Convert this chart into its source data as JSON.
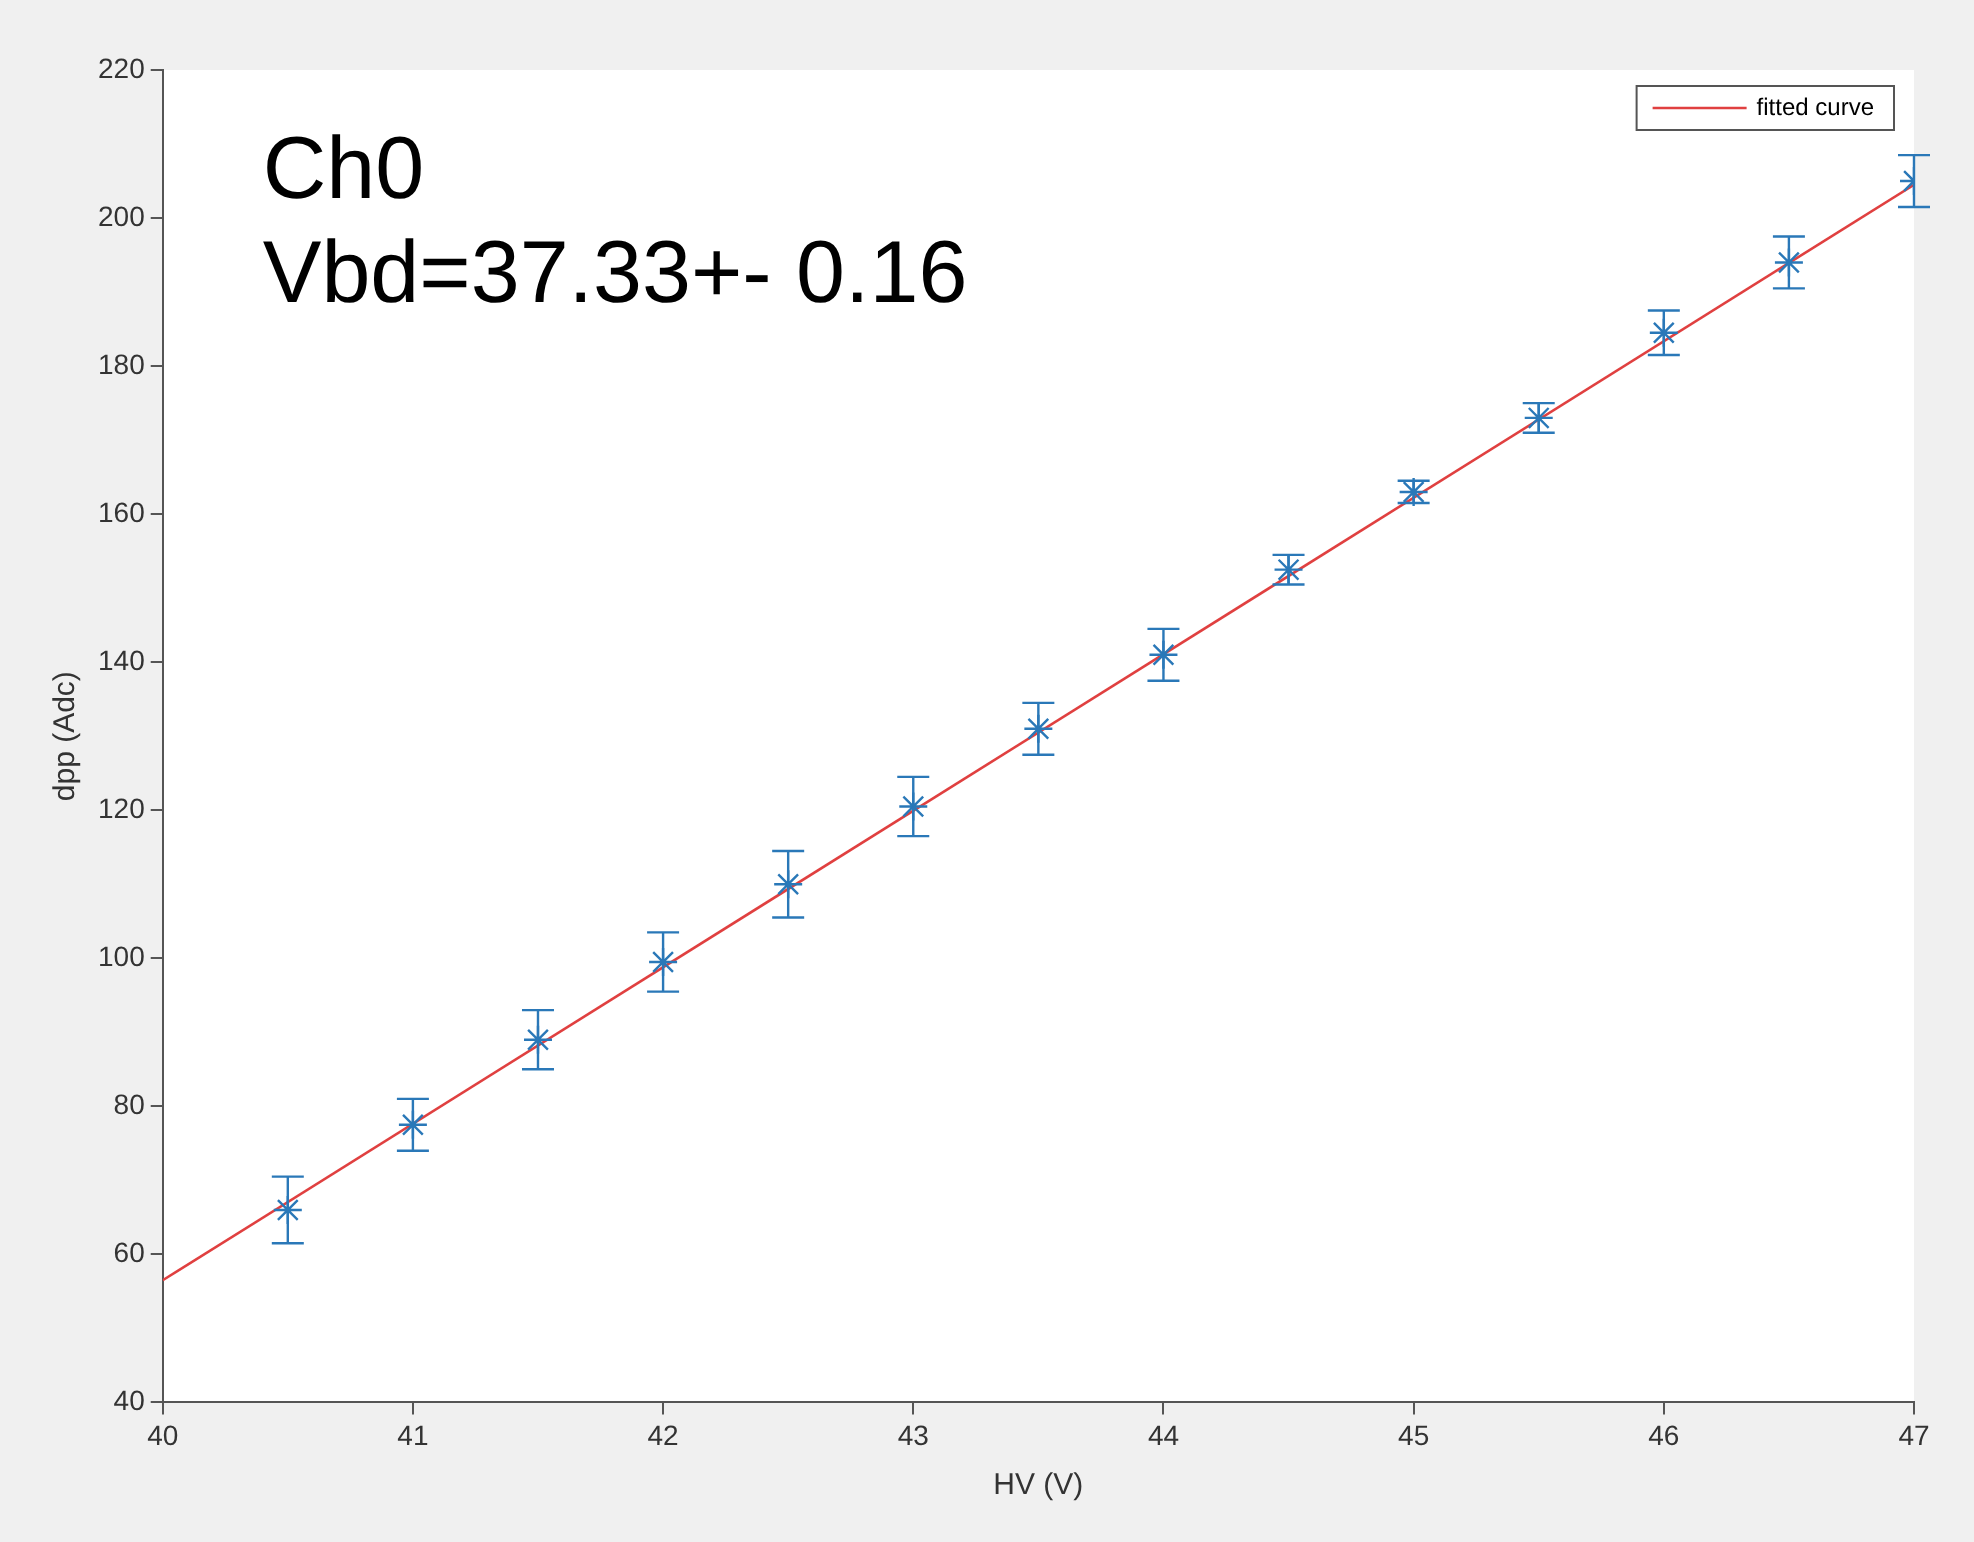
{
  "chart_data": {
    "type": "scatter",
    "xlabel": "HV (V)",
    "ylabel": "dpp (Adc)",
    "xlim": [
      40,
      47
    ],
    "xticks": [
      40,
      41,
      42,
      43,
      44,
      45,
      46,
      47
    ],
    "ylim": [
      40,
      220
    ],
    "yticks": [
      40,
      60,
      80,
      100,
      120,
      140,
      160,
      180,
      200,
      220
    ],
    "legend": "top right",
    "annotations": [
      "Ch0",
      "Vbd=37.33+- 0.16"
    ],
    "series": [
      {
        "color": "#2a78b8",
        "marker": "cross",
        "x": [
          40.5,
          41,
          41.5,
          42,
          42.5,
          43,
          43.5,
          44,
          44.5,
          45,
          45.5,
          46,
          46.5,
          47
        ],
        "values": [
          66,
          77.5,
          89,
          99.5,
          110,
          120.5,
          131,
          141,
          152.5,
          163,
          173,
          184.5,
          194,
          205
        ],
        "errors": [
          4.5,
          3.5,
          4,
          4,
          4.5,
          4,
          3.5,
          3.5,
          2,
          1.5,
          2,
          3,
          3.5,
          3.5
        ]
      },
      {
        "type": "line",
        "name": "fitted curve",
        "color": "#e04040",
        "marker": "none",
        "x": [
          40,
          47
        ],
        "values": [
          56.5,
          204.5
        ]
      }
    ]
  }
}
